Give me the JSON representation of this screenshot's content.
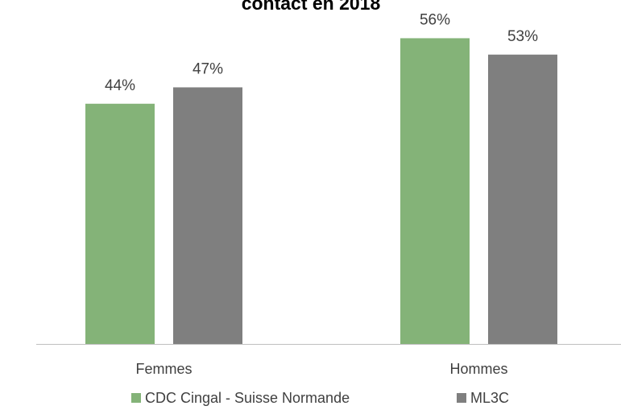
{
  "chart_data": {
    "type": "bar",
    "title": "contact en 2018",
    "categories": [
      "Femmes",
      "Hommes"
    ],
    "series": [
      {
        "name": "CDC Cingal - Suisse Normande",
        "color": "#84b378",
        "values": [
          44,
          56
        ],
        "value_labels": [
          "44%",
          "56%"
        ]
      },
      {
        "name": "ML3C",
        "color": "#7f7f7f",
        "values": [
          47,
          53
        ],
        "value_labels": [
          "47%",
          "53%"
        ]
      }
    ],
    "ylim": [
      0,
      63
    ],
    "legend": "bottom"
  }
}
